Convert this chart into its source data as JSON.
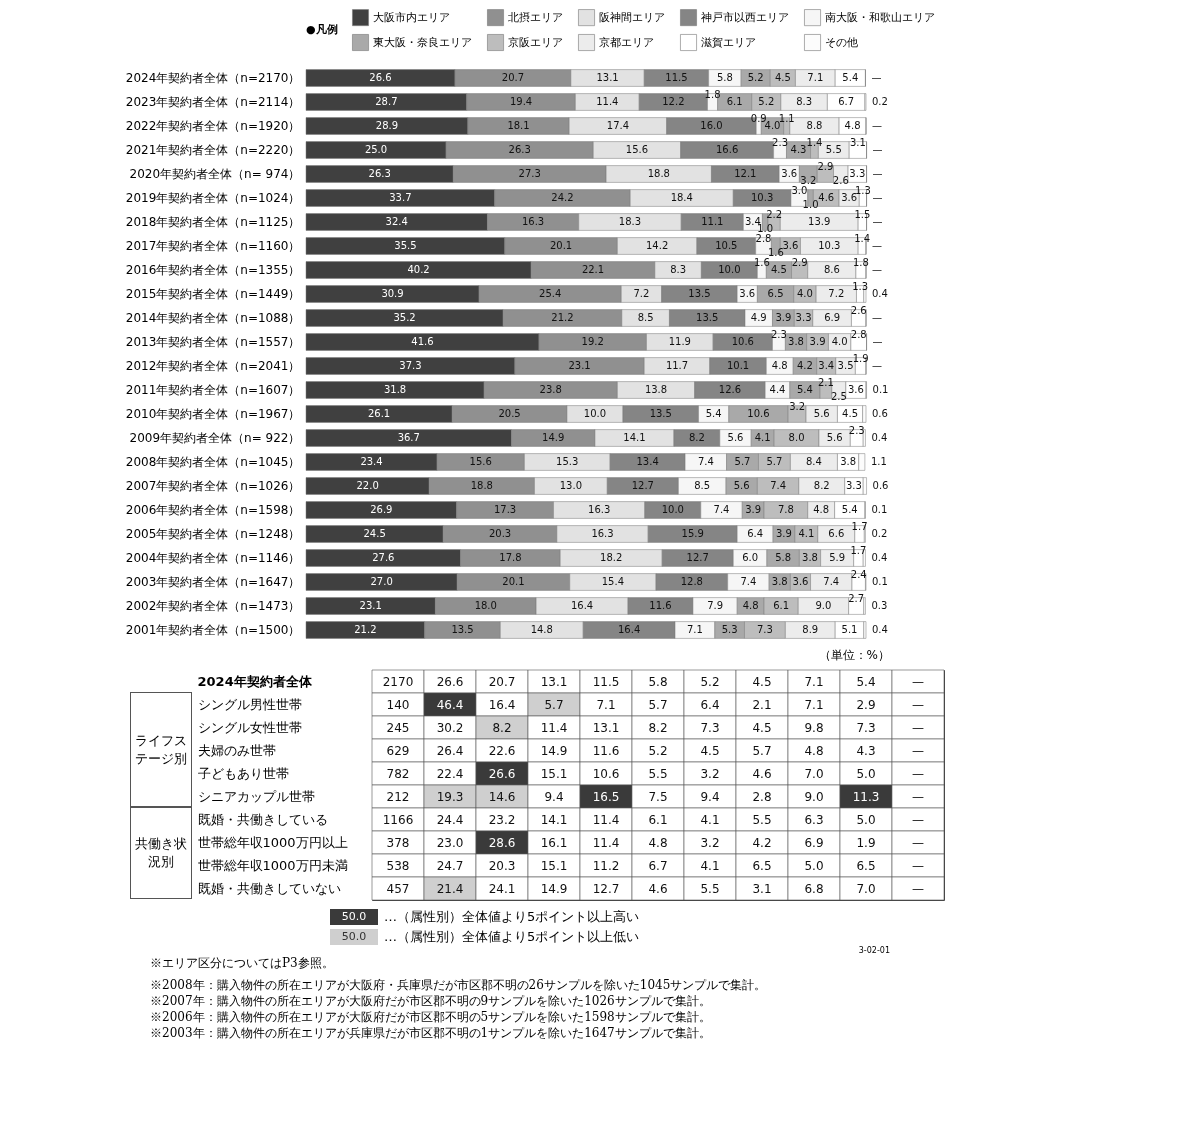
{
  "chart_data": [
    {
      "type": "bar",
      "orientation": "horizontal",
      "stacked": true,
      "data_labels": true,
      "legend": "top",
      "legend_title": "●凡例",
      "xlim": [
        0,
        100
      ],
      "tick_labels": "y",
      "categories": [
        "2024年契約者全体（n=2170）",
        "2023年契約者全体（n=2114）",
        "2022年契約者全体（n=1920）",
        "2021年契約者全体（n=2220）",
        "2020年契約者全体（n= 974）",
        "2019年契約者全体（n=1024）",
        "2018年契約者全体（n=1125）",
        "2017年契約者全体（n=1160）",
        "2016年契約者全体（n=1355）",
        "2015年契約者全体（n=1449）",
        "2014年契約者全体（n=1088）",
        "2013年契約者全体（n=1557）",
        "2012年契約者全体（n=2041）",
        "2011年契約者全体（n=1607）",
        "2010年契約者全体（n=1967）",
        "2009年契約者全体（n= 922）",
        "2008年契約者全体（n=1045）",
        "2007年契約者全体（n=1026）",
        "2006年契約者全体（n=1598）",
        "2005年契約者全体（n=1248）",
        "2004年契約者全体（n=1146）",
        "2003年契約者全体（n=1647）",
        "2002年契約者全体（n=1473）",
        "2001年契約者全体（n=1500）"
      ],
      "series": [
        {
          "name": "大阪市内エリア",
          "color": "#404040",
          "values": [
            26.6,
            28.7,
            28.9,
            25.0,
            26.3,
            33.7,
            32.4,
            35.5,
            40.2,
            30.9,
            35.2,
            41.6,
            37.3,
            31.8,
            26.1,
            36.7,
            23.4,
            22.0,
            26.9,
            24.5,
            27.6,
            27.0,
            23.1,
            21.2
          ],
          "value_labels": [
            "26.6",
            "28.7",
            "28.9",
            "25.0",
            "26.3",
            "33.7",
            "32.4",
            "35.5",
            "40.2",
            "30.9",
            "35.2",
            "41.6",
            "37.3",
            "31.8",
            "26.1",
            "36.7",
            "23.4",
            "22.0",
            "26.9",
            "24.5",
            "27.6",
            "27.0",
            "23.1",
            "21.2"
          ]
        },
        {
          "name": "北摂エリア",
          "color": "#909090",
          "values": [
            20.7,
            19.4,
            18.1,
            26.3,
            27.3,
            24.2,
            16.3,
            20.1,
            22.1,
            25.4,
            21.2,
            19.2,
            23.1,
            23.8,
            20.5,
            14.9,
            15.6,
            18.8,
            17.3,
            20.3,
            17.8,
            20.1,
            18.0,
            13.5
          ],
          "value_labels": [
            "20.7",
            "19.4",
            "18.1",
            "26.3",
            "27.3",
            "24.2",
            "16.3",
            "20.1",
            "22.1",
            "25.4",
            "21.2",
            "19.2",
            "23.1",
            "23.8",
            "20.5",
            "14.9",
            "15.6",
            "18.8",
            "17.3",
            "20.3",
            "17.8",
            "20.1",
            "18.0",
            "13.5"
          ]
        },
        {
          "name": "阪神間エリア",
          "color": "#e2e2e2",
          "values": [
            13.1,
            11.4,
            17.4,
            15.6,
            18.8,
            18.4,
            18.3,
            14.2,
            8.3,
            7.2,
            8.5,
            11.9,
            11.7,
            13.8,
            10.0,
            14.1,
            15.3,
            13.0,
            16.3,
            16.3,
            18.2,
            15.4,
            16.4,
            14.8
          ],
          "value_labels": [
            "13.1",
            "11.4",
            "17.4",
            "15.6",
            "18.8",
            "18.4",
            "18.3",
            "14.2",
            "8.3",
            "7.2",
            "8.5",
            "11.9",
            "11.7",
            "13.8",
            "10.0",
            "14.1",
            "15.3",
            "13.0",
            "16.3",
            "16.3",
            "18.2",
            "15.4",
            "16.4",
            "14.8"
          ]
        },
        {
          "name": "神戸市以西エリア",
          "color": "#858585",
          "values": [
            11.5,
            12.2,
            16.0,
            16.6,
            12.1,
            10.3,
            11.1,
            10.5,
            10.0,
            13.5,
            13.5,
            10.6,
            10.1,
            12.6,
            13.5,
            8.2,
            13.4,
            12.7,
            10.0,
            15.9,
            12.7,
            12.8,
            11.6,
            16.4
          ],
          "value_labels": [
            "11.5",
            "12.2",
            "16.0",
            "16.6",
            "12.1",
            "10.3",
            "11.1",
            "10.5",
            "10.0",
            "13.5",
            "13.5",
            "10.6",
            "10.1",
            "12.6",
            "13.5",
            "8.2",
            "13.4",
            "12.7",
            "10.0",
            "15.9",
            "12.7",
            "12.8",
            "11.6",
            "16.4"
          ]
        },
        {
          "name": "南大阪・和歌山エリア",
          "color": "#f6f6f6",
          "values": [
            5.8,
            1.8,
            0.9,
            2.3,
            3.6,
            3.0,
            3.4,
            2.8,
            1.6,
            3.6,
            4.9,
            2.3,
            4.8,
            4.4,
            5.4,
            5.6,
            7.4,
            8.5,
            7.4,
            6.4,
            6.0,
            7.4,
            7.9,
            7.1
          ],
          "value_labels": [
            "5.8",
            "1.8",
            "0.9",
            "2.3",
            "3.6",
            "3.0",
            "3.4",
            "2.8",
            "1.6",
            "3.6",
            "4.9",
            "2.3",
            "4.8",
            "4.4",
            "5.4",
            "5.6",
            "7.4",
            "8.5",
            "7.4",
            "6.4",
            "6.0",
            "7.4",
            "7.9",
            "7.1"
          ]
        },
        {
          "name": "東大阪・奈良エリア",
          "color": "#a9a9a9",
          "values": [
            5.2,
            6.1,
            4.0,
            4.3,
            3.2,
            1.0,
            1.0,
            1.6,
            4.5,
            6.5,
            3.9,
            3.8,
            4.2,
            5.4,
            10.6,
            4.1,
            5.7,
            5.6,
            3.9,
            3.9,
            5.8,
            3.8,
            4.8,
            5.3
          ],
          "value_labels": [
            "5.2",
            "6.1",
            "4.0",
            "4.3",
            "3.2",
            "1.0",
            "1.0",
            "1.6",
            "4.5",
            "6.5",
            "3.9",
            "3.8",
            "4.2",
            "5.4",
            "10.6",
            "4.1",
            "5.7",
            "5.6",
            "3.9",
            "3.9",
            "5.8",
            "3.8",
            "4.8",
            "5.3"
          ]
        },
        {
          "name": "京阪エリア",
          "color": "#bdbdbd",
          "values": [
            4.5,
            5.2,
            1.1,
            1.4,
            2.9,
            4.6,
            2.2,
            3.6,
            2.9,
            4.0,
            3.3,
            3.9,
            3.4,
            2.1,
            3.2,
            8.0,
            5.7,
            7.4,
            7.8,
            4.1,
            3.8,
            3.6,
            6.1,
            7.3
          ],
          "value_labels": [
            "4.5",
            "5.2",
            "1.1",
            "1.4",
            "2.9",
            "4.6",
            "2.2",
            "3.6",
            "2.9",
            "4.0",
            "3.3",
            "3.9",
            "3.4",
            "2.1",
            "3.2",
            "8.0",
            "5.7",
            "7.4",
            "7.8",
            "4.1",
            "3.8",
            "3.6",
            "6.1",
            "7.3"
          ]
        },
        {
          "name": "京都エリア",
          "color": "#ececec",
          "values": [
            7.1,
            8.3,
            8.8,
            5.5,
            2.6,
            3.6,
            13.9,
            10.3,
            8.6,
            7.2,
            6.9,
            4.0,
            3.5,
            2.5,
            5.6,
            5.6,
            8.4,
            8.2,
            4.8,
            6.6,
            5.9,
            7.4,
            9.0,
            8.9
          ],
          "value_labels": [
            "7.1",
            "8.3",
            "8.8",
            "5.5",
            "2.6",
            "3.6",
            "13.9",
            "10.3",
            "8.6",
            "7.2",
            "6.9",
            "4.0",
            "3.5",
            "2.5",
            "5.6",
            "5.6",
            "8.4",
            "8.2",
            "4.8",
            "6.6",
            "5.9",
            "7.4",
            "9.0",
            "8.9"
          ]
        },
        {
          "name": "滋賀エリア",
          "color": "#ffffff",
          "values": [
            5.4,
            6.7,
            4.8,
            3.1,
            3.3,
            1.3,
            1.5,
            1.4,
            1.8,
            1.3,
            2.6,
            2.8,
            1.9,
            3.6,
            4.5,
            2.3,
            3.8,
            3.3,
            5.4,
            1.7,
            1.7,
            2.4,
            2.7,
            5.1
          ]
        },
        {
          "name": "その他",
          "color": "#fcfcfc",
          "values": [
            null,
            0.2,
            null,
            null,
            null,
            null,
            null,
            null,
            null,
            0.4,
            null,
            null,
            null,
            0.1,
            0.6,
            0.4,
            1.1,
            0.6,
            0.1,
            0.2,
            0.4,
            0.1,
            0.3,
            0.4
          ],
          "value_labels": [
            "—",
            "0.2",
            "—",
            "—",
            "—",
            "—",
            "—",
            "—",
            "—",
            "0.4",
            "—",
            "—",
            "—",
            "0.1",
            "0.6",
            "0.4",
            "1.1",
            "0.6",
            "0.1",
            "0.2",
            "0.4",
            "0.1",
            "0.3",
            "0.4"
          ]
        }
      ]
    },
    {
      "type": "heatmap",
      "tick_labels": "y",
      "categories": [
        null,
        null,
        null,
        null,
        null,
        null,
        null,
        null,
        null,
        null,
        null
      ],
      "y_categories": [
        "2024年契約者全体",
        "シングル男性世帯",
        "シングル女性世帯",
        "夫婦のみ世帯",
        "子どもあり世帯",
        "シニアカップル世帯",
        "既婚・共働きしている",
        "世帯総年収1000万円以上",
        "世帯総年収1000万円未満",
        "既婚・共働きしていない"
      ],
      "cells": [
        [
          null,
          26.6,
          20.7,
          13.1,
          11.5,
          5.8,
          5.2,
          4.5,
          7.1,
          5.4,
          null
        ],
        [
          null,
          46.4,
          16.4,
          5.7,
          7.1,
          5.7,
          6.4,
          2.1,
          7.1,
          2.9,
          null
        ],
        [
          null,
          30.2,
          8.2,
          11.4,
          13.1,
          8.2,
          7.3,
          4.5,
          9.8,
          7.3,
          null
        ],
        [
          null,
          26.4,
          22.6,
          14.9,
          11.6,
          5.2,
          4.5,
          5.7,
          4.8,
          4.3,
          null
        ],
        [
          null,
          22.4,
          26.6,
          15.1,
          10.6,
          5.5,
          3.2,
          4.6,
          7.0,
          5.0,
          null
        ],
        [
          null,
          19.3,
          14.6,
          9.4,
          16.5,
          7.5,
          9.4,
          2.8,
          9.0,
          11.3,
          null
        ],
        [
          null,
          24.4,
          23.2,
          14.1,
          11.4,
          6.1,
          4.1,
          5.5,
          6.3,
          5.0,
          null
        ],
        [
          null,
          23.0,
          28.6,
          16.1,
          11.4,
          4.8,
          3.2,
          4.2,
          6.9,
          1.9,
          null
        ],
        [
          null,
          24.7,
          20.3,
          15.1,
          11.2,
          6.7,
          4.1,
          6.5,
          5.0,
          6.5,
          null
        ],
        [
          null,
          21.4,
          24.1,
          14.9,
          12.7,
          4.6,
          5.5,
          3.1,
          6.8,
          7.0,
          null
        ]
      ],
      "cell_labels": [
        [
          "2170",
          "26.6",
          "20.7",
          "13.1",
          "11.5",
          "5.8",
          "5.2",
          "4.5",
          "7.1",
          "5.4",
          "—"
        ],
        [
          "140",
          "46.4",
          "16.4",
          "5.7",
          "7.1",
          "5.7",
          "6.4",
          "2.1",
          "7.1",
          "2.9",
          "—"
        ],
        [
          "245",
          "30.2",
          "8.2",
          "11.4",
          "13.1",
          "8.2",
          "7.3",
          "4.5",
          "9.8",
          "7.3",
          "—"
        ],
        [
          "629",
          "26.4",
          "22.6",
          "14.9",
          "11.6",
          "5.2",
          "4.5",
          "5.7",
          "4.8",
          "4.3",
          "—"
        ],
        [
          "782",
          "22.4",
          "26.6",
          "15.1",
          "10.6",
          "5.5",
          "3.2",
          "4.6",
          "7.0",
          "5.0",
          "—"
        ],
        [
          "212",
          "19.3",
          "14.6",
          "9.4",
          "16.5",
          "7.5",
          "9.4",
          "2.8",
          "9.0",
          "11.3",
          "—"
        ],
        [
          "1166",
          "24.4",
          "23.2",
          "14.1",
          "11.4",
          "6.1",
          "4.1",
          "5.5",
          "6.3",
          "5.0",
          "—"
        ],
        [
          "378",
          "23.0",
          "28.6",
          "16.1",
          "11.4",
          "4.8",
          "3.2",
          "4.2",
          "6.9",
          "1.9",
          "—"
        ],
        [
          "538",
          "24.7",
          "20.3",
          "15.1",
          "11.2",
          "6.7",
          "4.1",
          "6.5",
          "5.0",
          "6.5",
          "—"
        ],
        [
          "457",
          "21.4",
          "24.1",
          "14.9",
          "12.7",
          "4.6",
          "5.5",
          "3.1",
          "6.8",
          "7.0",
          "—"
        ]
      ],
      "annotations": [
        "ライフステージ別",
        "共働き状況別",
        "（単位：%）",
        "50.0",
        "…（属性別）全体値より5ポイント以上高い",
        "50.0",
        "…（属性別）全体値より5ポイント以上低い",
        "3-02-01",
        "※エリア区分についてはP3参照。",
        "※2008年：購入物件の所在エリアが大阪府・兵庫県だが市区郡不明の26サンプルを除いた1045サンプルで集計。",
        "※2007年：購入物件の所在エリアが大阪府だが市区郡不明の9サンプルを除いた1026サンプルで集計。",
        "※2006年：購入物件の所在エリアが大阪府だが市区郡不明の5サンプルを除いた1598サンプルで集計。",
        "※2003年：購入物件の所在エリアが兵庫県だが市区郡不明の1サンプルを除いた1647サンプルで集計。"
      ]
    }
  ]
}
